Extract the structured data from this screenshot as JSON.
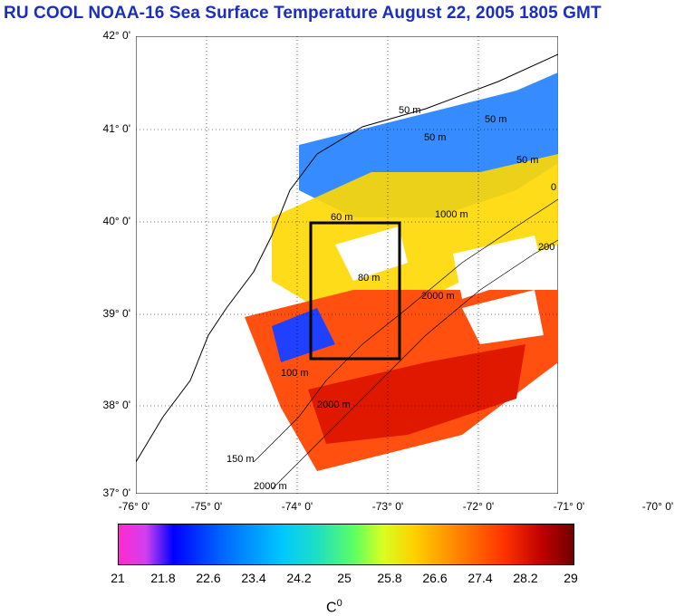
{
  "title": "RU COOL  NOAA-16 Sea Surface Temperature August 22, 2005 1805 GMT",
  "map": {
    "lat_labels": [
      "42° 0'",
      "41° 0'",
      "40° 0'",
      "39° 0'",
      "38° 0'",
      "37° 0'"
    ],
    "lon_labels": [
      "-76° 0'",
      "-75° 0'",
      "-74° 0'",
      "-73° 0'",
      "-72° 0'",
      "-71° 0'",
      "-70° 0'"
    ],
    "contours": [
      "50 m",
      "50 m",
      "50 m",
      "50 m",
      "60 m",
      "80 m",
      "100 m",
      "1000 m",
      "2000 m",
      "2000 m",
      "2000 m",
      "200",
      "0",
      "150 m"
    ],
    "box": "study area"
  },
  "colorbar": {
    "ticks": [
      "21",
      "21.8",
      "22.6",
      "23.4",
      "24.2",
      "25",
      "25.8",
      "26.6",
      "27.4",
      "28.2",
      "29"
    ],
    "unit": "C",
    "unit_sup": "0"
  },
  "colors": {
    "title": "#1a2fbf",
    "box": "#000000"
  }
}
